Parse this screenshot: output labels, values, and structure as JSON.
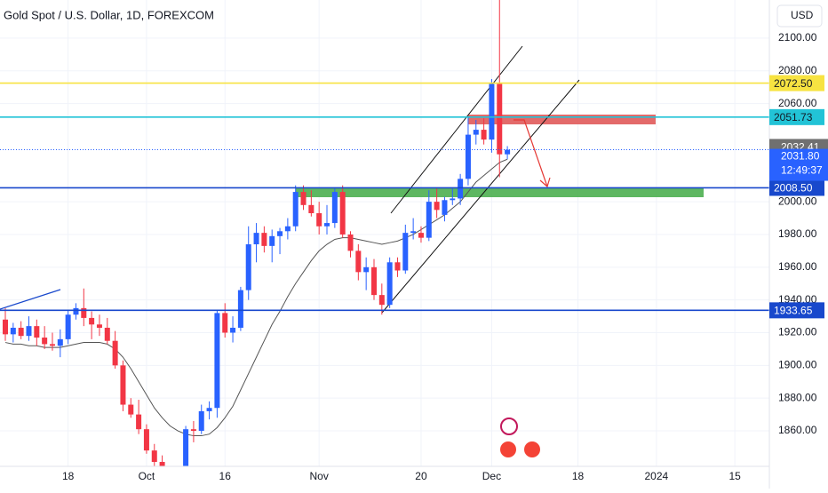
{
  "chart_data": {
    "type": "candlestick",
    "title": "Gold Spot / U.S. Dollar, 1D, FOREXCOM",
    "currency": "USD",
    "up_color": "#2962ff",
    "down_color": "#f23645",
    "open": [
      1928,
      1919,
      1923,
      1918,
      1924,
      1917,
      1913,
      1912,
      1916,
      1931,
      1935,
      1929,
      1925,
      1923,
      1915,
      1900,
      1876,
      1870,
      1861,
      1848,
      1841,
      1821,
      1820,
      1833,
      1861,
      1860,
      1872,
      1874,
      1932,
      1920,
      1923,
      1946,
      1974,
      1981,
      1973,
      1979,
      1982,
      1985,
      2006,
      1998,
      1993,
      1985,
      1987,
      2006,
      1980,
      1970,
      1957,
      1960,
      1943,
      1937,
      1963,
      1958,
      1981,
      1981,
      1978,
      2000,
      1992,
      2001,
      2002,
      2014,
      2041,
      2044,
      2038,
      2072,
      2029
    ],
    "high": [
      1935,
      1926,
      1927,
      1930,
      1928,
      1924,
      1920,
      1922,
      1934,
      1938,
      1947,
      1933,
      1931,
      1929,
      1921,
      1903,
      1880,
      1879,
      1864,
      1852,
      1845,
      1829,
      1834,
      1863,
      1866,
      1876,
      1878,
      1934,
      1938,
      1930,
      1948,
      1985,
      1987,
      1985,
      1983,
      1984,
      1990,
      2010,
      2010,
      2007,
      2000,
      1998,
      2008,
      2010,
      1982,
      1974,
      1966,
      1965,
      1950,
      1966,
      1966,
      1986,
      1990,
      1985,
      2007,
      2008,
      2003,
      2008,
      2017,
      2052,
      2050,
      2051,
      2075,
      2146,
      2034
    ],
    "low": [
      1915,
      1914,
      1916,
      1915,
      1912,
      1910,
      1909,
      1905,
      1913,
      1928,
      1924,
      1916,
      1918,
      1913,
      1898,
      1872,
      1868,
      1858,
      1846,
      1835,
      1823,
      1813,
      1810,
      1832,
      1853,
      1858,
      1867,
      1868,
      1917,
      1914,
      1921,
      1940,
      1963,
      1969,
      1963,
      1968,
      1977,
      1982,
      1995,
      1991,
      1980,
      1980,
      1984,
      1978,
      1966,
      1952,
      1946,
      1940,
      1931,
      1935,
      1954,
      1956,
      1977,
      1975,
      1976,
      1990,
      1988,
      1998,
      1998,
      2010,
      2035,
      2035,
      2030,
      2015,
      2026
    ],
    "close": [
      1919,
      1923,
      1918,
      1924,
      1917,
      1913,
      1912,
      1916,
      1931,
      1935,
      1929,
      1925,
      1923,
      1915,
      1900,
      1876,
      1870,
      1861,
      1848,
      1841,
      1828,
      1820,
      1833,
      1861,
      1860,
      1872,
      1874,
      1932,
      1920,
      1923,
      1946,
      1974,
      1981,
      1973,
      1979,
      1982,
      1985,
      2006,
      1998,
      1993,
      1985,
      1987,
      2006,
      1980,
      1970,
      1957,
      1960,
      1943,
      1937,
      1963,
      1958,
      1981,
      1982,
      1978,
      2000,
      1995,
      2001,
      2002,
      2014,
      2041,
      2044,
      2038,
      2072,
      2029,
      2031.8
    ],
    "ma": {
      "color": "#555555",
      "values": [
        1914,
        1913,
        1913,
        1912,
        1912,
        1911,
        1911,
        1911,
        1912,
        1913,
        1914,
        1914,
        1914,
        1913,
        1910,
        1905,
        1898,
        1890,
        1882,
        1874,
        1868,
        1863,
        1860,
        1858,
        1857,
        1857,
        1858,
        1862,
        1868,
        1875,
        1885,
        1895,
        1905,
        1915,
        1925,
        1933,
        1942,
        1950,
        1957,
        1964,
        1970,
        1974,
        1977,
        1978,
        1978,
        1977,
        1976,
        1975,
        1974,
        1975,
        1976,
        1978,
        1980,
        1983,
        1986,
        1989,
        1992,
        1996,
        2000,
        2006,
        2012,
        2016,
        2020,
        2024,
        2026
      ]
    },
    "xlim": [
      -0.68,
      97.4
    ],
    "xticks": [
      {
        "value": 8,
        "label": "18"
      },
      {
        "value": 18,
        "label": "Oct"
      },
      {
        "value": 28,
        "label": "16"
      },
      {
        "value": 40,
        "label": "Nov"
      },
      {
        "value": 53,
        "label": "20"
      },
      {
        "value": 62,
        "label": "Dec"
      },
      {
        "value": 73,
        "label": "18"
      },
      {
        "value": 83,
        "label": "2024"
      },
      {
        "value": 93,
        "label": "15"
      }
    ],
    "ylim": [
      1838.3,
      2123.3
    ],
    "yticks": [
      {
        "value": 1860,
        "label": "1860.00"
      },
      {
        "value": 1880,
        "label": "1880.00"
      },
      {
        "value": 1900,
        "label": "1900.00"
      },
      {
        "value": 1920,
        "label": "1920.00"
      },
      {
        "value": 1940,
        "label": "1940.00"
      },
      {
        "value": 1960,
        "label": "1960.00"
      },
      {
        "value": 1980,
        "label": "1980.00"
      },
      {
        "value": 2000,
        "label": "2000.00"
      },
      {
        "value": 2060,
        "label": "2060.00"
      },
      {
        "value": 2080,
        "label": "2080.00"
      },
      {
        "value": 2100,
        "label": "2100.00"
      }
    ],
    "levels": [
      {
        "value": 2072.5,
        "label": "2072.50",
        "color": "#f7e341"
      },
      {
        "value": 2051.73,
        "label": "2051.73",
        "color": "#22c3d6"
      },
      {
        "value": 2008.5,
        "label": "2008.50",
        "color": "#1848cc"
      },
      {
        "value": 1933.65,
        "label": "1933.65",
        "color": "#1848cc"
      }
    ],
    "price_labels": [
      {
        "value": 2032.41,
        "label": "2032.41",
        "color": "#707070"
      },
      {
        "value": 2031.8,
        "label": "2031.80",
        "countdown": "12:49:37",
        "color": "#2962ff"
      }
    ]
  }
}
